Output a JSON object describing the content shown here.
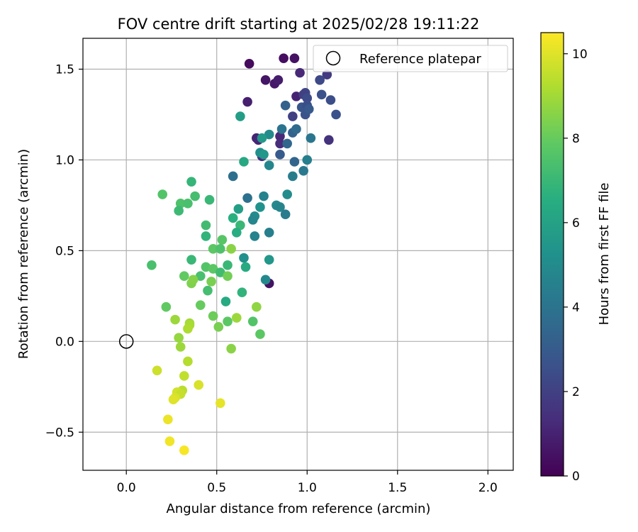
{
  "chart_data": {
    "type": "scatter",
    "title": "FOV centre drift starting at 2025/02/28 19:11:22",
    "xlabel": "Angular distance from reference (arcmin)",
    "ylabel": "Rotation from reference (arcmin)",
    "xlim": [
      -0.24,
      2.14
    ],
    "ylim": [
      -0.71,
      1.67
    ],
    "xticks": [
      0.0,
      0.5,
      1.0,
      1.5,
      2.0
    ],
    "xtick_labels": [
      "0.0",
      "0.5",
      "1.0",
      "1.5",
      "2.0"
    ],
    "yticks": [
      -0.5,
      0.0,
      0.5,
      1.0,
      1.5
    ],
    "ytick_labels": [
      "−0.5",
      "0.0",
      "0.5",
      "1.0",
      "1.5"
    ],
    "grid": true,
    "legend": {
      "position": "top-right",
      "label": "Reference platepar"
    },
    "reference_point": {
      "x": 0.0,
      "y": 0.0,
      "marker": "open-circle"
    },
    "colorbar": {
      "label": "Hours from first FF file",
      "colormap": "viridis",
      "range": [
        0,
        10.5
      ],
      "ticks": [
        0,
        2,
        4,
        6,
        8,
        10
      ],
      "tick_labels": [
        "0",
        "2",
        "4",
        "6",
        "8",
        "10"
      ]
    },
    "points": [
      {
        "x": 0.68,
        "y": 1.53,
        "h": 0.3
      },
      {
        "x": 0.87,
        "y": 1.56,
        "h": 0.4
      },
      {
        "x": 0.93,
        "y": 1.56,
        "h": 0.5
      },
      {
        "x": 0.77,
        "y": 1.44,
        "h": 0.6
      },
      {
        "x": 0.82,
        "y": 1.42,
        "h": 0.7
      },
      {
        "x": 0.84,
        "y": 1.44,
        "h": 0.8
      },
      {
        "x": 0.67,
        "y": 1.32,
        "h": 0.9
      },
      {
        "x": 0.94,
        "y": 1.35,
        "h": 1.0
      },
      {
        "x": 0.96,
        "y": 1.48,
        "h": 1.2
      },
      {
        "x": 0.72,
        "y": 1.12,
        "h": 1.0
      },
      {
        "x": 0.73,
        "y": 1.11,
        "h": 1.1
      },
      {
        "x": 0.85,
        "y": 1.13,
        "h": 1.2
      },
      {
        "x": 0.85,
        "y": 1.09,
        "h": 1.3
      },
      {
        "x": 0.75,
        "y": 1.02,
        "h": 1.4
      },
      {
        "x": 0.79,
        "y": 0.32,
        "h": 0.5
      },
      {
        "x": 1.11,
        "y": 1.47,
        "h": 1.8
      },
      {
        "x": 1.07,
        "y": 1.44,
        "h": 2.3
      },
      {
        "x": 1.12,
        "y": 1.11,
        "h": 1.5
      },
      {
        "x": 0.99,
        "y": 1.37,
        "h": 2.2
      },
      {
        "x": 0.98,
        "y": 1.36,
        "h": 2.0
      },
      {
        "x": 1.0,
        "y": 1.34,
        "h": 2.4
      },
      {
        "x": 1.13,
        "y": 1.33,
        "h": 2.5
      },
      {
        "x": 1.08,
        "y": 1.36,
        "h": 2.6
      },
      {
        "x": 0.97,
        "y": 1.29,
        "h": 2.8
      },
      {
        "x": 1.0,
        "y": 1.3,
        "h": 2.5
      },
      {
        "x": 0.99,
        "y": 1.25,
        "h": 2.7
      },
      {
        "x": 1.01,
        "y": 1.28,
        "h": 2.9
      },
      {
        "x": 1.16,
        "y": 1.25,
        "h": 2.6
      },
      {
        "x": 0.92,
        "y": 1.24,
        "h": 2.0
      },
      {
        "x": 0.88,
        "y": 1.3,
        "h": 3.2
      },
      {
        "x": 0.92,
        "y": 1.15,
        "h": 3.3
      },
      {
        "x": 0.94,
        "y": 1.17,
        "h": 3.6
      },
      {
        "x": 0.89,
        "y": 1.09,
        "h": 3.5
      },
      {
        "x": 0.86,
        "y": 1.17,
        "h": 4.0
      },
      {
        "x": 0.85,
        "y": 1.03,
        "h": 3.0
      },
      {
        "x": 0.93,
        "y": 0.99,
        "h": 3.4
      },
      {
        "x": 1.02,
        "y": 1.12,
        "h": 4.1
      },
      {
        "x": 1.0,
        "y": 1.0,
        "h": 4.5
      },
      {
        "x": 0.98,
        "y": 0.94,
        "h": 4.2
      },
      {
        "x": 0.92,
        "y": 0.91,
        "h": 4.4
      },
      {
        "x": 0.59,
        "y": 0.91,
        "h": 3.8
      },
      {
        "x": 0.67,
        "y": 0.79,
        "h": 3.9
      },
      {
        "x": 0.79,
        "y": 0.97,
        "h": 4.8
      },
      {
        "x": 0.79,
        "y": 1.14,
        "h": 5.0
      },
      {
        "x": 0.74,
        "y": 1.04,
        "h": 5.2
      },
      {
        "x": 0.76,
        "y": 1.03,
        "h": 5.5
      },
      {
        "x": 0.75,
        "y": 1.12,
        "h": 5.6
      },
      {
        "x": 0.63,
        "y": 1.24,
        "h": 5.8
      },
      {
        "x": 0.76,
        "y": 0.8,
        "h": 4.6
      },
      {
        "x": 0.83,
        "y": 0.75,
        "h": 4.9
      },
      {
        "x": 0.85,
        "y": 0.74,
        "h": 4.7
      },
      {
        "x": 0.89,
        "y": 0.81,
        "h": 5.1
      },
      {
        "x": 0.88,
        "y": 0.7,
        "h": 4.3
      },
      {
        "x": 0.74,
        "y": 0.74,
        "h": 5.3
      },
      {
        "x": 0.71,
        "y": 0.69,
        "h": 5.0
      },
      {
        "x": 0.7,
        "y": 0.67,
        "h": 4.8
      },
      {
        "x": 0.79,
        "y": 0.6,
        "h": 4.5
      },
      {
        "x": 0.71,
        "y": 0.58,
        "h": 4.6
      },
      {
        "x": 0.65,
        "y": 0.46,
        "h": 5.2
      },
      {
        "x": 0.79,
        "y": 0.45,
        "h": 5.5
      },
      {
        "x": 0.77,
        "y": 0.34,
        "h": 4.9
      },
      {
        "x": 0.62,
        "y": 0.73,
        "h": 5.9
      },
      {
        "x": 0.65,
        "y": 0.99,
        "h": 6.3
      },
      {
        "x": 0.59,
        "y": 0.68,
        "h": 6.6
      },
      {
        "x": 0.63,
        "y": 0.64,
        "h": 7.0
      },
      {
        "x": 0.61,
        "y": 0.6,
        "h": 6.5
      },
      {
        "x": 0.66,
        "y": 0.41,
        "h": 6.4
      },
      {
        "x": 0.64,
        "y": 0.27,
        "h": 6.8
      },
      {
        "x": 0.36,
        "y": 0.88,
        "h": 6.9
      },
      {
        "x": 0.46,
        "y": 0.78,
        "h": 7.0
      },
      {
        "x": 0.38,
        "y": 0.8,
        "h": 7.3
      },
      {
        "x": 0.3,
        "y": 0.76,
        "h": 7.5
      },
      {
        "x": 0.34,
        "y": 0.76,
        "h": 7.4
      },
      {
        "x": 0.2,
        "y": 0.81,
        "h": 7.6
      },
      {
        "x": 0.29,
        "y": 0.72,
        "h": 7.1
      },
      {
        "x": 0.44,
        "y": 0.64,
        "h": 7.2
      },
      {
        "x": 0.44,
        "y": 0.58,
        "h": 6.8
      },
      {
        "x": 0.53,
        "y": 0.56,
        "h": 7.7
      },
      {
        "x": 0.48,
        "y": 0.51,
        "h": 7.8
      },
      {
        "x": 0.52,
        "y": 0.51,
        "h": 7.5
      },
      {
        "x": 0.58,
        "y": 0.51,
        "h": 8.6
      },
      {
        "x": 0.36,
        "y": 0.45,
        "h": 7.0
      },
      {
        "x": 0.41,
        "y": 0.36,
        "h": 7.4
      },
      {
        "x": 0.44,
        "y": 0.41,
        "h": 7.6
      },
      {
        "x": 0.48,
        "y": 0.4,
        "h": 7.8
      },
      {
        "x": 0.52,
        "y": 0.38,
        "h": 7.2
      },
      {
        "x": 0.56,
        "y": 0.42,
        "h": 7.0
      },
      {
        "x": 0.56,
        "y": 0.36,
        "h": 8.2
      },
      {
        "x": 0.47,
        "y": 0.33,
        "h": 8.3
      },
      {
        "x": 0.32,
        "y": 0.36,
        "h": 7.9
      },
      {
        "x": 0.36,
        "y": 0.32,
        "h": 8.4
      },
      {
        "x": 0.37,
        "y": 0.34,
        "h": 8.5
      },
      {
        "x": 0.45,
        "y": 0.28,
        "h": 7.3
      },
      {
        "x": 0.55,
        "y": 0.22,
        "h": 6.4
      },
      {
        "x": 0.14,
        "y": 0.42,
        "h": 7.4
      },
      {
        "x": 0.22,
        "y": 0.19,
        "h": 7.9
      },
      {
        "x": 0.41,
        "y": 0.2,
        "h": 8.0
      },
      {
        "x": 0.48,
        "y": 0.14,
        "h": 8.1
      },
      {
        "x": 0.56,
        "y": 0.11,
        "h": 7.8
      },
      {
        "x": 0.51,
        "y": 0.08,
        "h": 8.3
      },
      {
        "x": 0.61,
        "y": 0.13,
        "h": 8.9
      },
      {
        "x": 0.7,
        "y": 0.11,
        "h": 7.6
      },
      {
        "x": 0.72,
        "y": 0.19,
        "h": 8.7
      },
      {
        "x": 0.74,
        "y": 0.04,
        "h": 7.8
      },
      {
        "x": 0.58,
        "y": -0.04,
        "h": 8.6
      },
      {
        "x": 0.27,
        "y": 0.12,
        "h": 8.9
      },
      {
        "x": 0.35,
        "y": 0.1,
        "h": 9.0
      },
      {
        "x": 0.35,
        "y": 0.09,
        "h": 9.1
      },
      {
        "x": 0.34,
        "y": 0.07,
        "h": 9.2
      },
      {
        "x": 0.29,
        "y": 0.02,
        "h": 8.8
      },
      {
        "x": 0.3,
        "y": -0.03,
        "h": 8.9
      },
      {
        "x": 0.34,
        "y": -0.11,
        "h": 9.3
      },
      {
        "x": 0.17,
        "y": -0.16,
        "h": 9.7
      },
      {
        "x": 0.32,
        "y": -0.19,
        "h": 9.5
      },
      {
        "x": 0.4,
        "y": -0.24,
        "h": 9.9
      },
      {
        "x": 0.31,
        "y": -0.27,
        "h": 9.4
      },
      {
        "x": 0.28,
        "y": -0.28,
        "h": 9.8
      },
      {
        "x": 0.3,
        "y": -0.29,
        "h": 9.6
      },
      {
        "x": 0.27,
        "y": -0.31,
        "h": 9.9
      },
      {
        "x": 0.26,
        "y": -0.32,
        "h": 10.0
      },
      {
        "x": 0.52,
        "y": -0.34,
        "h": 10.1
      },
      {
        "x": 0.23,
        "y": -0.43,
        "h": 10.2
      },
      {
        "x": 0.24,
        "y": -0.55,
        "h": 10.3
      },
      {
        "x": 0.32,
        "y": -0.6,
        "h": 10.4
      }
    ]
  }
}
